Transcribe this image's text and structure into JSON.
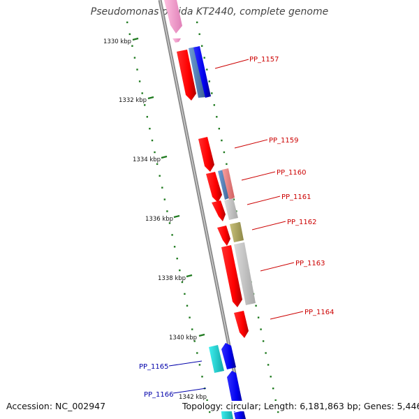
{
  "title": "Pseudomonas putida KT2440, complete genome",
  "footer": {
    "accession": "Accession: NC_002947",
    "summary": "Topology: circular; Length: 6,181,863 bp; Genes: 5,446"
  },
  "scale_labels": [
    "1330 kbp",
    "1332 kbp",
    "1334 kbp",
    "1336 kbp",
    "1338 kbp",
    "1340 kbp",
    "1342 kbp"
  ],
  "gene_labels": [
    "PP_1157",
    "PP_1159",
    "PP_1160",
    "PP_1161",
    "PP_1162",
    "PP_1163",
    "PP_1164",
    "PP_1165",
    "PP_1166"
  ],
  "colors": {
    "backbone": "#808080",
    "tick": "#1f7a1f",
    "forward_label": "#cc0000",
    "reverse_label": "#0000aa",
    "red_gene": "#ff0000",
    "blue_gene": "#0000ff",
    "steel_gene": "#4f81bd",
    "salmon_gene": "#f08080",
    "gray_gene": "#c8c8c8",
    "olive_gene": "#b5ad6a",
    "cyan_gene": "#1fd6d6",
    "pink_gene": "#f5a0d0"
  }
}
